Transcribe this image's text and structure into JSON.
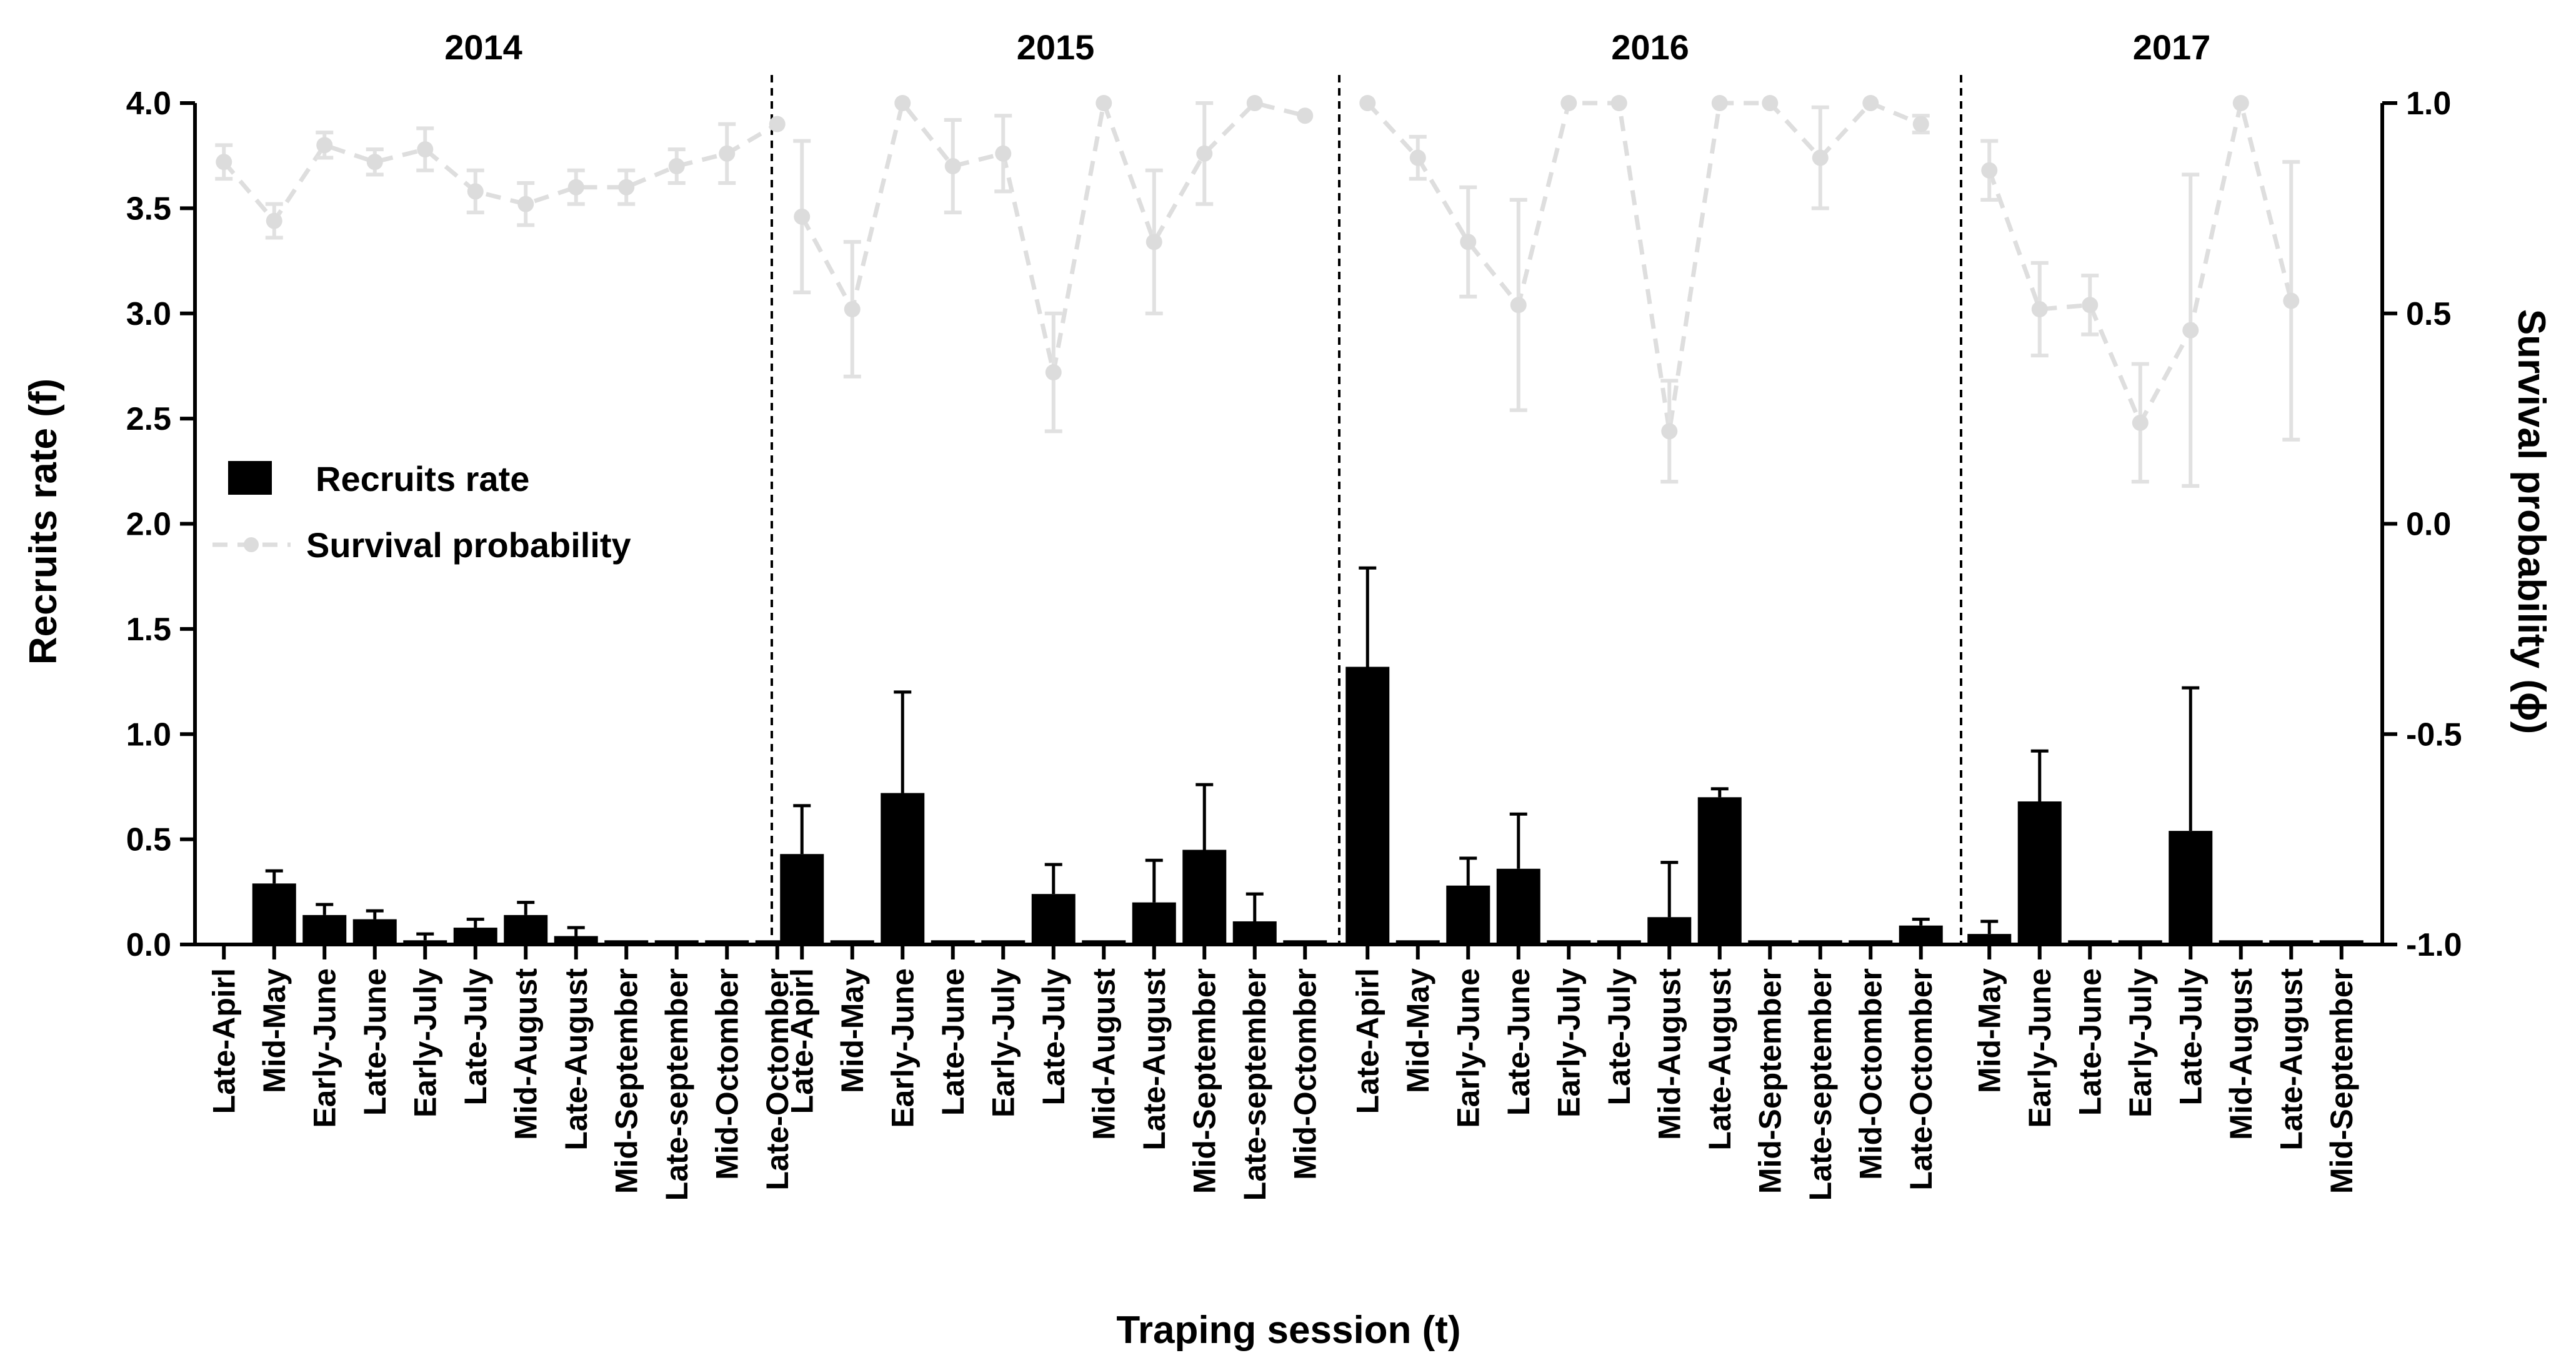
{
  "chart_data": {
    "type": "bar",
    "title": "",
    "xlabel": "Traping session (t)",
    "ylabel": "Recruits rate (f)",
    "y2label": "Survival probability (ϕ)",
    "ylim": [
      0,
      4.0
    ],
    "y2lim": [
      -1.0,
      1.0
    ],
    "yticks": [
      "0.0",
      "0.5",
      "1.0",
      "1.5",
      "2.0",
      "2.5",
      "3.0",
      "3.5",
      "4.0"
    ],
    "y2ticks": [
      "-1.0",
      "-0.5",
      "0.0",
      "0.5",
      "1.0"
    ],
    "legend": {
      "position": "left",
      "bar_label": "Recruits rate",
      "line_label": "Survival probability"
    },
    "colors": {
      "bar": "#000000",
      "survival": "#dcdcdc"
    },
    "groups": [
      {
        "year": "2014",
        "categories": [
          "Late-Apirl",
          "Mid-May",
          "Early-June",
          "Late-June",
          "Early-July",
          "Late-July",
          "Mid-August",
          "Late-August",
          "Mid-September",
          "Late-september",
          "Mid-Octomber",
          "Late-Octomber"
        ],
        "recruits": [
          0.0,
          0.29,
          0.14,
          0.12,
          0.02,
          0.08,
          0.14,
          0.04,
          0.02,
          0.02,
          0.02,
          0.02
        ],
        "recruits_err": [
          0.0,
          0.06,
          0.05,
          0.04,
          0.03,
          0.04,
          0.06,
          0.04,
          0.0,
          0.0,
          0.0,
          0.0
        ],
        "survival": [
          0.86,
          0.72,
          0.9,
          0.86,
          0.89,
          0.79,
          0.76,
          0.8,
          0.8,
          0.85,
          0.88,
          0.95
        ],
        "survival_err": [
          0.04,
          0.04,
          0.03,
          0.03,
          0.05,
          0.05,
          0.05,
          0.04,
          0.04,
          0.04,
          0.07,
          0.0
        ]
      },
      {
        "year": "2015",
        "categories": [
          "Late-Apirl",
          "Mid-May",
          "Early-June",
          "Late-June",
          "Early-July",
          "Late-July",
          "Mid-August",
          "Late-August",
          "Mid-September",
          "Late-september",
          "Mid-Octomber"
        ],
        "recruits": [
          0.43,
          0.02,
          0.72,
          0.02,
          0.02,
          0.24,
          0.02,
          0.2,
          0.45,
          0.11,
          0.02
        ],
        "recruits_err": [
          0.23,
          0.0,
          0.48,
          0.0,
          0.0,
          0.14,
          0.0,
          0.2,
          0.31,
          0.13,
          0.0
        ],
        "survival": [
          0.73,
          0.51,
          1.0,
          0.85,
          0.88,
          0.36,
          1.0,
          0.67,
          0.88,
          1.0,
          0.97
        ],
        "survival_err": [
          0.18,
          0.16,
          0.0,
          0.11,
          0.09,
          0.14,
          0.0,
          0.17,
          0.12,
          0.0,
          0.0
        ]
      },
      {
        "year": "2016",
        "categories": [
          "Late-Apirl",
          "Mid-May",
          "Early-June",
          "Late-June",
          "Early-July",
          "Late-July",
          "Mid-August",
          "Late-August",
          "Mid-September",
          "Late-september",
          "Mid-Octomber",
          "Late-Octomber"
        ],
        "recruits": [
          1.32,
          0.02,
          0.28,
          0.36,
          0.02,
          0.02,
          0.13,
          0.7,
          0.02,
          0.02,
          0.02,
          0.09
        ],
        "recruits_err": [
          0.47,
          0.0,
          0.13,
          0.26,
          0.0,
          0.0,
          0.26,
          0.04,
          0.0,
          0.0,
          0.0,
          0.03
        ],
        "survival": [
          1.0,
          0.87,
          0.67,
          0.52,
          1.0,
          1.0,
          0.22,
          1.0,
          1.0,
          0.87,
          1.0,
          0.95
        ],
        "survival_err": [
          0.0,
          0.05,
          0.13,
          0.25,
          0.0,
          0.0,
          0.12,
          0.0,
          0.0,
          0.12,
          0.0,
          0.02
        ]
      },
      {
        "year": "2017",
        "categories": [
          "Mid-May",
          "Early-June",
          "Late-June",
          "Early-July",
          "Late-July",
          "Mid-August",
          "Late-August",
          "Mid-September"
        ],
        "recruits": [
          0.05,
          0.68,
          0.02,
          0.02,
          0.54,
          0.02,
          0.02,
          0.02
        ],
        "recruits_err": [
          0.06,
          0.24,
          0.0,
          0.0,
          0.68,
          0.0,
          0.0,
          0.0
        ],
        "survival": [
          0.84,
          0.51,
          0.52,
          0.24,
          0.46,
          1.0,
          0.53,
          null
        ],
        "survival_err": [
          0.07,
          0.11,
          0.07,
          0.14,
          0.37,
          0.0,
          0.33,
          0
        ]
      }
    ]
  }
}
